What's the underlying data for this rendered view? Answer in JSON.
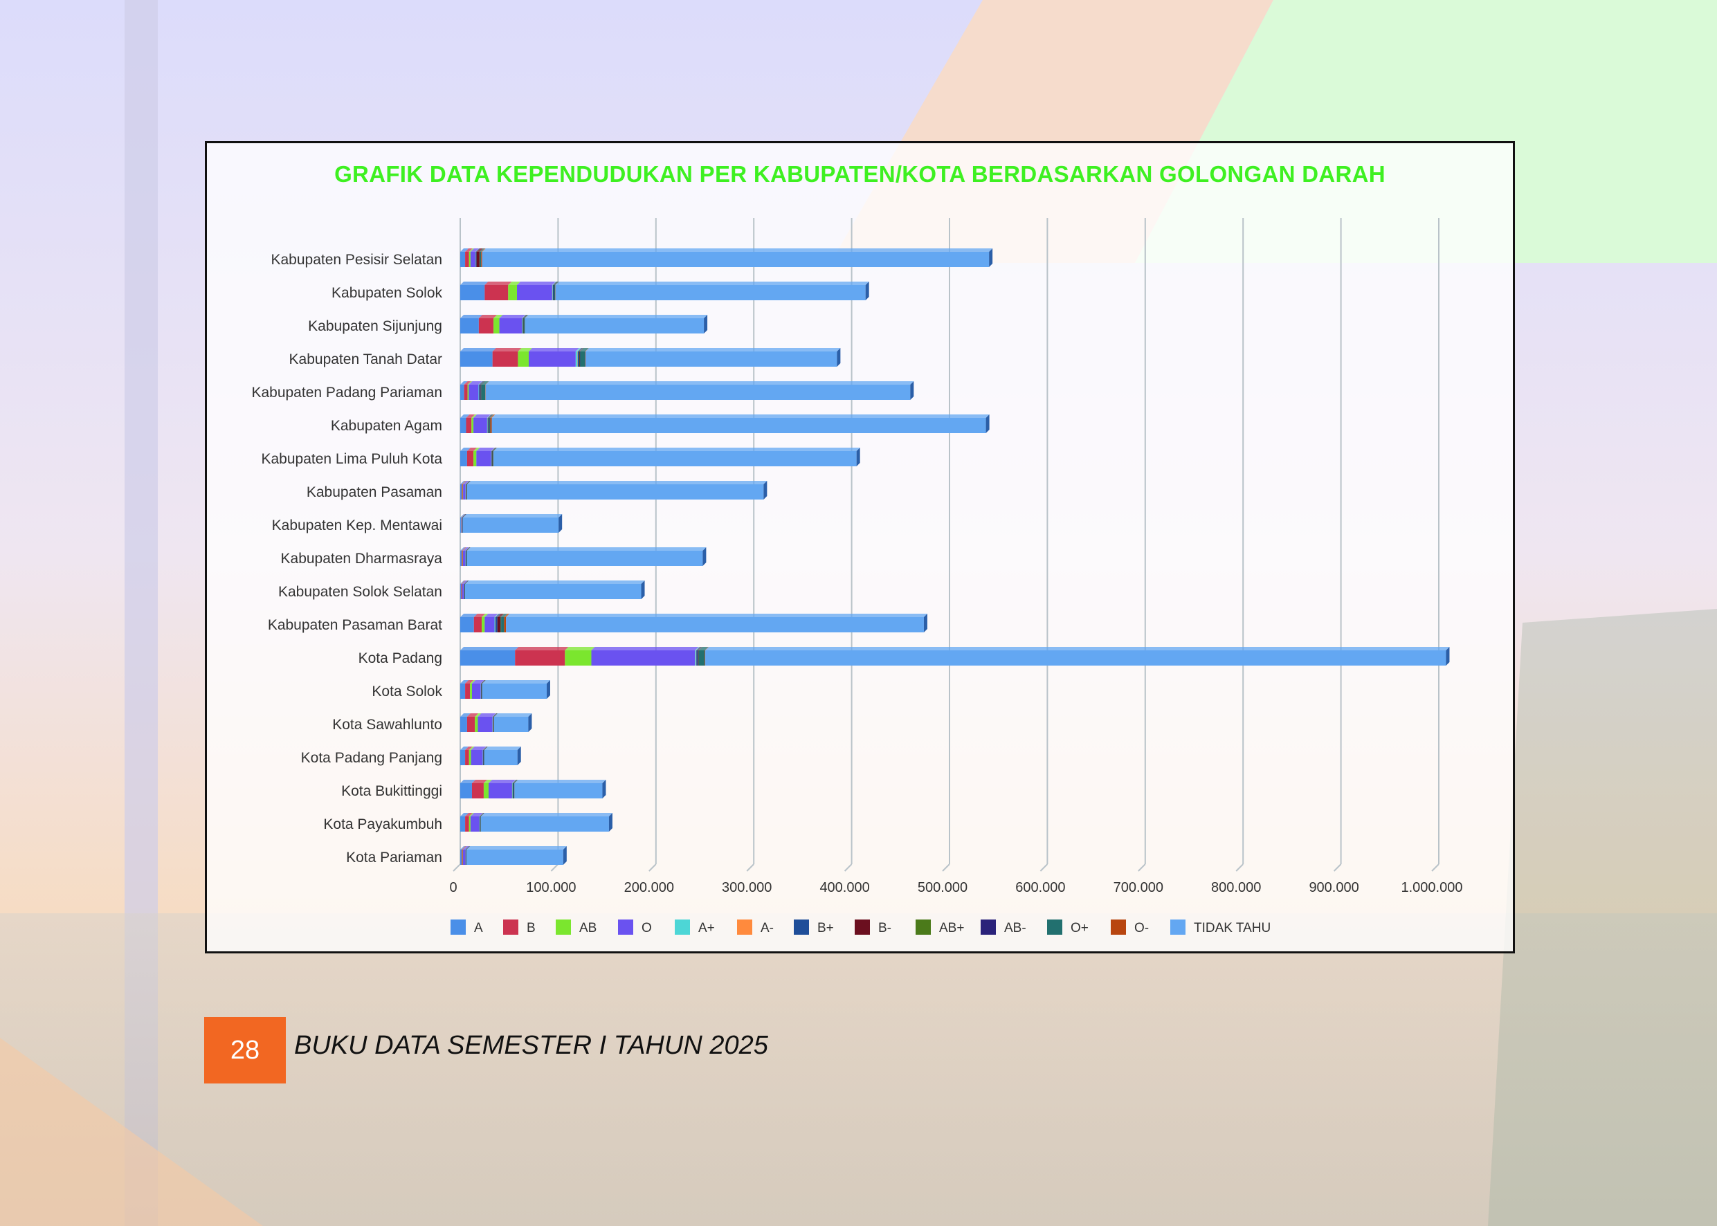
{
  "page": {
    "number": "28",
    "footer": "BUKU DATA SEMESTER I TAHUN 2025"
  },
  "chart_data": {
    "type": "bar",
    "orientation": "horizontal",
    "stacked": true,
    "title": "GRAFIK DATA KEPENDUDUKAN PER KABUPATEN/KOTA BERDASARKAN GOLONGAN DARAH",
    "xlabel": "",
    "ylabel": "",
    "xlim": [
      0,
      1000000
    ],
    "x_ticks": [
      "0",
      "100.000",
      "200.000",
      "300.000",
      "400.000",
      "500.000",
      "600.000",
      "700.000",
      "800.000",
      "900.000",
      "1.000.000"
    ],
    "x_tick_values": [
      0,
      100000,
      200000,
      300000,
      400000,
      500000,
      600000,
      700000,
      800000,
      900000,
      1000000
    ],
    "grid": true,
    "legend_position": "bottom",
    "categories": [
      "Kabupaten Pesisir Selatan",
      "Kabupaten Solok",
      "Kabupaten Sijunjung",
      "Kabupaten Tanah Datar",
      "Kabupaten Padang Pariaman",
      "Kabupaten Agam",
      "Kabupaten Lima Puluh Kota",
      "Kabupaten Pasaman",
      "Kabupaten Kep. Mentawai",
      "Kabupaten Dharmasraya",
      "Kabupaten Solok Selatan",
      "Kabupaten Pasaman Barat",
      "Kota Padang",
      "Kota Solok",
      "Kota Sawahlunto",
      "Kota Padang Panjang",
      "Kota Bukittinggi",
      "Kota Payakumbuh",
      "Kota Pariaman"
    ],
    "series": [
      {
        "name": "A",
        "color": "#4a8fe8",
        "values": [
          5000,
          25000,
          19000,
          33000,
          4000,
          6000,
          7000,
          1500,
          1000,
          1500,
          1000,
          14000,
          56000,
          5000,
          7000,
          5000,
          12000,
          5000,
          1500
        ]
      },
      {
        "name": "B",
        "color": "#cc3350",
        "values": [
          4000,
          24000,
          15000,
          26000,
          3500,
          5500,
          6500,
          1000,
          300,
          1000,
          800,
          8000,
          51000,
          5000,
          8000,
          4000,
          12000,
          4000,
          1000
        ]
      },
      {
        "name": "AB",
        "color": "#7be62e",
        "values": [
          1500,
          9000,
          6000,
          11000,
          1200,
          2000,
          3000,
          400,
          100,
          300,
          200,
          3000,
          27000,
          2000,
          3000,
          2000,
          5000,
          1500,
          300
        ]
      },
      {
        "name": "O",
        "color": "#6a52f0",
        "values": [
          5000,
          36000,
          23000,
          48000,
          10000,
          14000,
          15000,
          2500,
          500,
          2500,
          2000,
          10000,
          106000,
          9000,
          15000,
          12000,
          24000,
          9000,
          2500
        ]
      },
      {
        "name": "A+",
        "color": "#4dd6d6",
        "values": [
          300,
          600,
          500,
          1800,
          500,
          500,
          400,
          300,
          100,
          300,
          200,
          800,
          1000,
          200,
          300,
          300,
          500,
          300,
          200
        ]
      },
      {
        "name": "A-",
        "color": "#ff8a3d",
        "values": [
          100,
          100,
          100,
          300,
          100,
          100,
          100,
          100,
          50,
          100,
          50,
          200,
          300,
          100,
          100,
          100,
          100,
          100,
          50
        ]
      },
      {
        "name": "B+",
        "color": "#1f4e99",
        "values": [
          800,
          800,
          700,
          1500,
          1500,
          800,
          500,
          300,
          100,
          300,
          200,
          2000,
          1500,
          300,
          300,
          300,
          500,
          300,
          200
        ]
      },
      {
        "name": "B-",
        "color": "#6b0f1f",
        "values": [
          3000,
          200,
          200,
          400,
          300,
          300,
          200,
          100,
          50,
          100,
          50,
          3000,
          400,
          100,
          100,
          100,
          100,
          100,
          50
        ]
      },
      {
        "name": "AB+",
        "color": "#4b7a1a",
        "values": [
          300,
          200,
          200,
          400,
          300,
          300,
          200,
          100,
          50,
          100,
          50,
          500,
          400,
          100,
          100,
          100,
          100,
          100,
          50
        ]
      },
      {
        "name": "AB-",
        "color": "#2a227a",
        "values": [
          200,
          100,
          100,
          200,
          200,
          200,
          100,
          100,
          50,
          100,
          50,
          300,
          300,
          100,
          100,
          100,
          100,
          100,
          50
        ]
      },
      {
        "name": "O+",
        "color": "#22706f",
        "values": [
          1200,
          1000,
          1000,
          5000,
          4000,
          1000,
          800,
          500,
          200,
          400,
          300,
          3000,
          6000,
          400,
          500,
          400,
          800,
          400,
          300
        ]
      },
      {
        "name": "O-",
        "color": "#b8450f",
        "values": [
          1000,
          200,
          200,
          400,
          300,
          1500,
          200,
          100,
          50,
          100,
          50,
          2000,
          500,
          100,
          100,
          100,
          100,
          100,
          50
        ]
      },
      {
        "name": "TIDAK TAHU",
        "color": "#63a7f2",
        "values": [
          518000,
          317000,
          183000,
          257000,
          434000,
          505000,
          371000,
          303000,
          98000,
          241000,
          180000,
          427000,
          757000,
          66000,
          35000,
          34000,
          90000,
          131000,
          99000
        ]
      }
    ]
  }
}
